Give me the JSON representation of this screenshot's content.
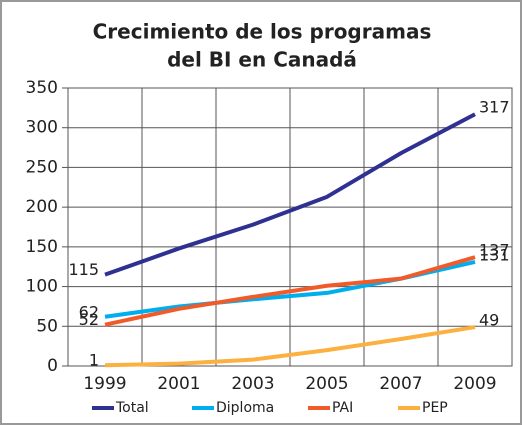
{
  "chart_data": {
    "type": "line",
    "title_lines": [
      "Crecimiento de los programas",
      "del BI en Canadá"
    ],
    "categories": [
      "1999",
      "2001",
      "2003",
      "2005",
      "2007",
      "2009"
    ],
    "series": [
      {
        "name": "Total",
        "color": "#2e3192",
        "values": [
          115,
          148,
          178,
          213,
          268,
          317
        ]
      },
      {
        "name": "Diploma",
        "color": "#00aeef",
        "values": [
          62,
          75,
          84,
          92,
          110,
          131
        ]
      },
      {
        "name": "PAI",
        "color": "#f15a29",
        "values": [
          52,
          72,
          87,
          101,
          110,
          137
        ]
      },
      {
        "name": "PEP",
        "color": "#fbb040",
        "values": [
          1,
          3,
          8,
          20,
          34,
          49
        ]
      }
    ],
    "ylim": [
      0,
      350
    ],
    "yticks": [
      0,
      50,
      100,
      150,
      200,
      250,
      300,
      350
    ],
    "grid": true,
    "legend": "bottom"
  }
}
